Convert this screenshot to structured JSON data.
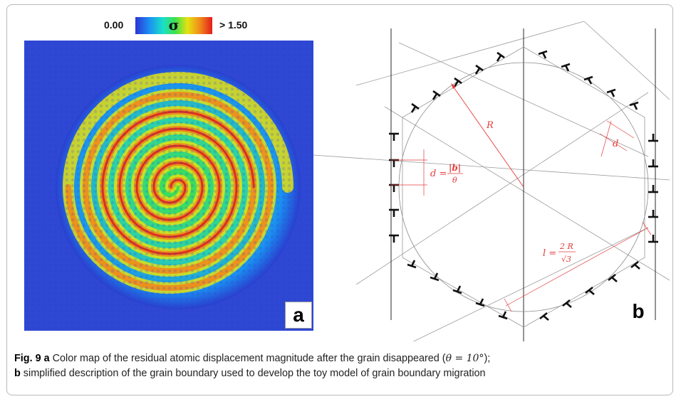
{
  "panel_a": {
    "colorbar": {
      "min_label": "0.00",
      "symbol": "σ",
      "max_label": "> 1.50",
      "colors": [
        "#2b33d6",
        "#1b8ff2",
        "#19e0c8",
        "#3fe04a",
        "#e4e312",
        "#f18a1a",
        "#e21d1d"
      ]
    },
    "label": "a",
    "background_color": "#2a3fcf"
  },
  "panel_b": {
    "label": "b",
    "annotations": {
      "radius": "R",
      "spacing_lhs": "d =",
      "spacing_num": "|b|",
      "spacing_den": "θ",
      "spacing_short": "d",
      "length_lhs": "l =",
      "length_num": "2 R",
      "length_den": "√3"
    },
    "annotation_color": "#e53b3b"
  },
  "caption": {
    "fig_label": "Fig. 9",
    "part_a": "a",
    "text_a": " Color map of the residual atomic displacement magnitude after the grain disappeared (",
    "math": "θ = 10°",
    "text_a_end": ");",
    "part_b": "b",
    "text_b": " simplified description of the grain boundary used to develop the toy model of grain boundary migration"
  }
}
